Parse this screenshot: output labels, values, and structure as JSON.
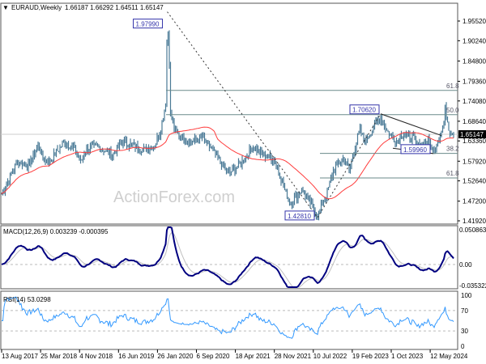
{
  "header": {
    "symbol": "EURAUD,Weekly",
    "ohlc": "1.66187 1.66292 1.64511 1.65147"
  },
  "watermark": "ActionForex.com",
  "colors": {
    "bars": "#4a7a96",
    "ma": "#ff3b3b",
    "macd": "#000080",
    "signal": "#c0c0c0",
    "rsi": "#3399ff",
    "label_border": "#3333aa"
  },
  "chart_data": [
    {
      "type": "ohlc-bar",
      "title": "EURAUD,Weekly",
      "y_ticks": [
        "1.95520",
        "1.90240",
        "1.84800",
        "1.79360",
        "1.74080",
        "1.68640",
        "1.63360",
        "1.57920",
        "1.52640",
        "1.47200",
        "1.41920"
      ],
      "ylim": [
        1.4192,
        1.9552
      ],
      "current_price": "1.65147",
      "x_ticks": [
        "13 Aug 2017",
        "25 Mar 2018",
        "4 Nov 2018",
        "16 Jun 2019",
        "26 Jan 2020",
        "6 Sep 2020",
        "18 Apr 2021",
        "28 Nov 2021",
        "10 Jul 2022",
        "19 Feb 2023",
        "1 Oct 2023",
        "12 May 2024"
      ],
      "price_path": [
        [
          "2017-08",
          1.491
        ],
        [
          "2017-11",
          1.578
        ],
        [
          "2018-01",
          1.567
        ],
        [
          "2018-03",
          1.621
        ],
        [
          "2018-04",
          1.582
        ],
        [
          "2018-05",
          1.578
        ],
        [
          "2018-08",
          1.632
        ],
        [
          "2018-10",
          1.61
        ],
        [
          "2018-11",
          1.578
        ],
        [
          "2018-12",
          1.61
        ],
        [
          "2019-02",
          1.621
        ],
        [
          "2019-05",
          1.595
        ],
        [
          "2019-07",
          1.632
        ],
        [
          "2019-09",
          1.621
        ],
        [
          "2019-11",
          1.61
        ],
        [
          "2020-01",
          1.621
        ],
        [
          "2020-02",
          1.654
        ],
        [
          "2020-03-08",
          1.74
        ],
        [
          "2020-03-15",
          1.979
        ],
        [
          "2020-03-29",
          1.816
        ],
        [
          "2020-04",
          1.708
        ],
        [
          "2020-05",
          1.654
        ],
        [
          "2020-08",
          1.632
        ],
        [
          "2020-10",
          1.643
        ],
        [
          "2020-12",
          1.61
        ],
        [
          "2021-02",
          1.567
        ],
        [
          "2021-03",
          1.545
        ],
        [
          "2021-05",
          1.567
        ],
        [
          "2021-08",
          1.621
        ],
        [
          "2021-09",
          1.6
        ],
        [
          "2021-11",
          1.589
        ],
        [
          "2021-12",
          1.578
        ],
        [
          "2022-02",
          1.491
        ],
        [
          "2022-03",
          1.469
        ],
        [
          "2022-05",
          1.502
        ],
        [
          "2022-07",
          1.458
        ],
        [
          "2022-08",
          1.433
        ],
        [
          "2022-10",
          1.502
        ],
        [
          "2022-11",
          1.556
        ],
        [
          "2023-01",
          1.589
        ],
        [
          "2023-02",
          1.556
        ],
        [
          "2023-04",
          1.664
        ],
        [
          "2023-05",
          1.632
        ],
        [
          "2023-08",
          1.701
        ],
        [
          "2023-09",
          1.664
        ],
        [
          "2023-11",
          1.632
        ],
        [
          "2023-12",
          1.654
        ],
        [
          "2024-02",
          1.643
        ],
        [
          "2024-03",
          1.621
        ],
        [
          "2024-05",
          1.632
        ],
        [
          "2024-06",
          1.604
        ],
        [
          "2024-08-01",
          1.676
        ],
        [
          "2024-08-08",
          1.719
        ],
        [
          "2024-09",
          1.664
        ],
        [
          "2024-10",
          1.651
        ]
      ],
      "moving_average": true,
      "swing_labels": [
        {
          "text": "1.97990",
          "value": 1.9799,
          "date": "2020-03-15"
        },
        {
          "text": "1.70620",
          "value": 1.7062,
          "date": "2023-08"
        },
        {
          "text": "1.59960",
          "value": 1.5996,
          "date": "2024-06"
        },
        {
          "text": "1.42810",
          "value": 1.4281,
          "date": "2022-08"
        }
      ],
      "fib_levels": [
        {
          "label": "61.8",
          "value": 1.7691
        },
        {
          "label": "50.0",
          "value": 1.704
        },
        {
          "label": "38.2",
          "value": 1.6
        },
        {
          "label": "61.8",
          "value": 1.5343
        }
      ]
    },
    {
      "type": "line",
      "title": "MACD(12,26,9) 0.003239 -0.000395",
      "y_ticks": [
        "0.050863",
        "0.00",
        "-0.035322"
      ],
      "ylim": [
        -0.035322,
        0.050863
      ]
    },
    {
      "type": "line",
      "title": "RSI(14) 53.0298",
      "y_ticks": [
        "100",
        "70",
        "30",
        "0"
      ],
      "ylim": [
        0,
        100
      ],
      "levels": [
        70,
        30
      ]
    }
  ]
}
